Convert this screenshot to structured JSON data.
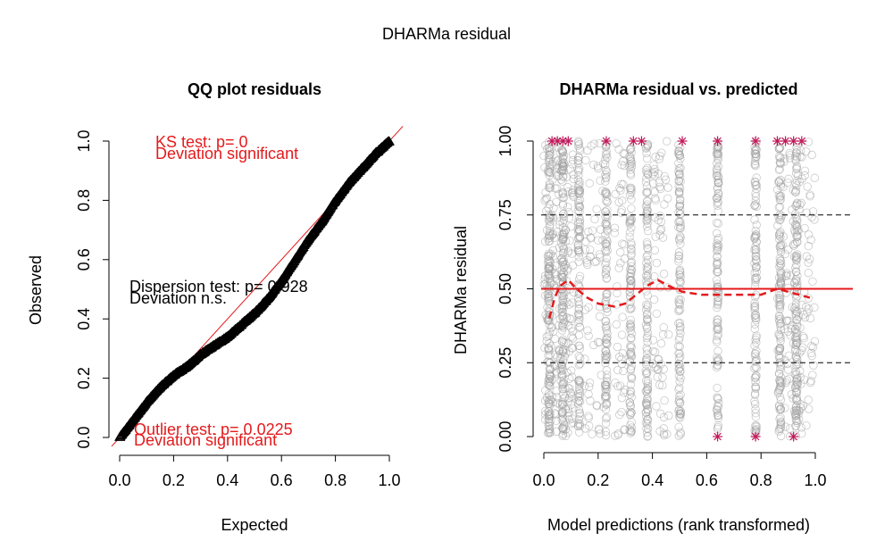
{
  "title": "DHARMa residual",
  "colors": {
    "red": "#e41a1c",
    "gray": "#9e9e9e",
    "star": "#c2185b",
    "black": "#000000"
  },
  "chart_data": [
    {
      "type": "scatter",
      "title": "QQ plot residuals",
      "xlabel": "Expected",
      "ylabel": "Observed",
      "xlim": [
        0,
        1
      ],
      "ylim": [
        0,
        1
      ],
      "xticks": [
        "0.0",
        "0.2",
        "0.4",
        "0.6",
        "0.8",
        "1.0"
      ],
      "yticks": [
        "0.0",
        "0.2",
        "0.4",
        "0.6",
        "0.8",
        "1.0"
      ],
      "reference_line": "y = x",
      "qq_curve": [
        [
          0.0,
          0.0
        ],
        [
          0.05,
          0.06
        ],
        [
          0.1,
          0.12
        ],
        [
          0.15,
          0.17
        ],
        [
          0.2,
          0.21
        ],
        [
          0.25,
          0.24
        ],
        [
          0.3,
          0.28
        ],
        [
          0.35,
          0.31
        ],
        [
          0.4,
          0.34
        ],
        [
          0.45,
          0.38
        ],
        [
          0.5,
          0.42
        ],
        [
          0.55,
          0.47
        ],
        [
          0.6,
          0.53
        ],
        [
          0.65,
          0.6
        ],
        [
          0.7,
          0.67
        ],
        [
          0.75,
          0.73
        ],
        [
          0.8,
          0.8
        ],
        [
          0.85,
          0.86
        ],
        [
          0.9,
          0.91
        ],
        [
          0.95,
          0.96
        ],
        [
          1.0,
          1.0
        ]
      ],
      "annotations": {
        "ks_test": "KS test: p= 0",
        "ks_result": "Deviation  significant",
        "dispersion_test": "Dispersion test: p= 0.928",
        "dispersion_result": "Deviation  n.s.",
        "outlier_test": "Outlier test: p= 0.0225",
        "outlier_result": "Deviation  significant"
      }
    },
    {
      "type": "scatter",
      "title": "DHARMa residual vs. predicted",
      "xlabel": "Model predictions (rank transformed)",
      "ylabel": "DHARMa residual",
      "xlim": [
        0,
        1
      ],
      "ylim": [
        0,
        1
      ],
      "xticks": [
        "0.0",
        "0.2",
        "0.4",
        "0.6",
        "0.8",
        "1.0"
      ],
      "yticks": [
        "0.00",
        "0.25",
        "0.50",
        "0.75",
        "1.00"
      ],
      "reference_lines": [
        0.25,
        0.5,
        0.75
      ],
      "residual_columns": [
        0.02,
        0.07,
        0.13,
        0.23,
        0.32,
        0.38,
        0.5,
        0.64,
        0.78,
        0.87,
        0.93
      ],
      "quantile_curve": [
        [
          0.02,
          0.4
        ],
        [
          0.04,
          0.47
        ],
        [
          0.06,
          0.51
        ],
        [
          0.09,
          0.53
        ],
        [
          0.12,
          0.5
        ],
        [
          0.16,
          0.47
        ],
        [
          0.2,
          0.45
        ],
        [
          0.26,
          0.44
        ],
        [
          0.3,
          0.45
        ],
        [
          0.34,
          0.48
        ],
        [
          0.38,
          0.51
        ],
        [
          0.42,
          0.53
        ],
        [
          0.46,
          0.51
        ],
        [
          0.51,
          0.49
        ],
        [
          0.58,
          0.48
        ],
        [
          0.65,
          0.48
        ],
        [
          0.72,
          0.48
        ],
        [
          0.8,
          0.48
        ],
        [
          0.86,
          0.5
        ],
        [
          0.9,
          0.49
        ],
        [
          0.94,
          0.48
        ],
        [
          0.98,
          0.47
        ]
      ],
      "outliers_top": [
        0.03,
        0.05,
        0.07,
        0.09,
        0.23,
        0.33,
        0.36,
        0.51,
        0.64,
        0.78,
        0.86,
        0.89,
        0.92,
        0.95
      ],
      "outliers_bottom": [
        0.64,
        0.78,
        0.92
      ]
    }
  ]
}
